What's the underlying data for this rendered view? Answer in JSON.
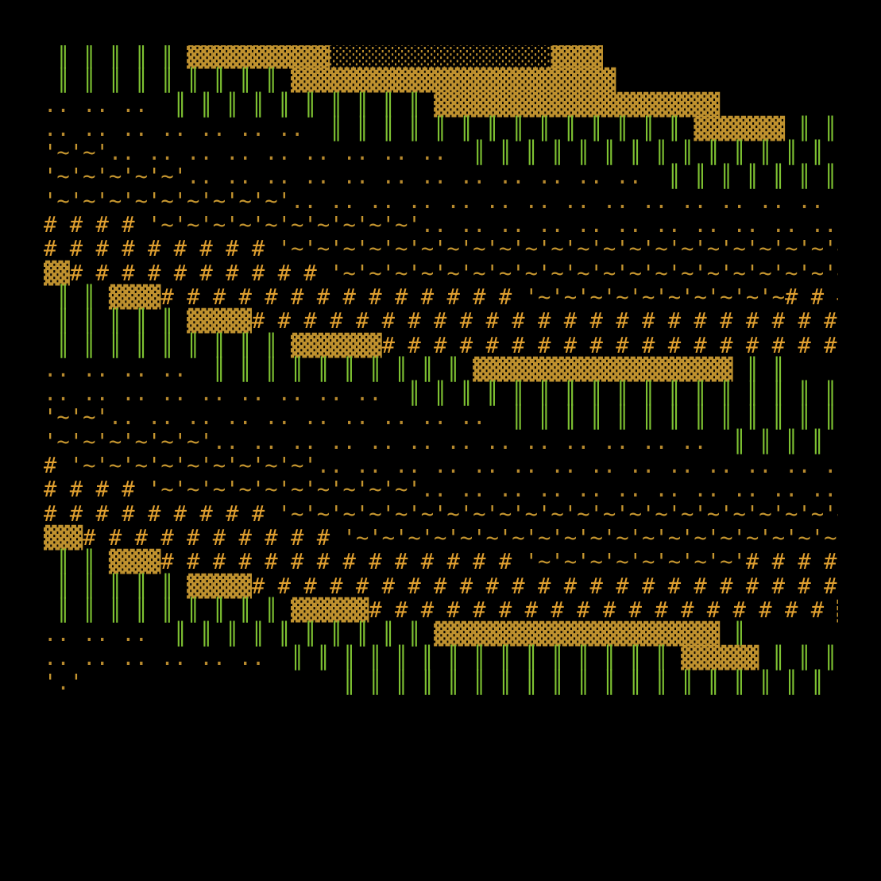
{
  "artwork": {
    "background_color": "#000000",
    "palette": {
      "bar": "#7ec232",
      "block": "#c0922f",
      "dot": "#b88a2e",
      "wave": "#c6962f",
      "hash": "#e0a030"
    },
    "rows": [
      " ║ ║ ║ ║ ║ ▓▓▓▓▓▓▓▓▓▓▓░░░░░░░░░░░░░░░░░▓▓▓▓",
      " ║ ║ ║ ║ ║ ║ ║ ║ ║ ▓▓▓▓▓▓▓▓▓▓▓▓▓▓▓▓▓▓▓▓▓▓▓▓▓",
      ".. .. ..  ║ ║ ║ ║ ║ ║ ║ ║ ║ ║ ▓▓▓▓▓▓▓▓▓▓▓▓▓▓▓▓▓▓▓▓▓▓",
      ".. .. .. .. .. .. ..  ║ ║ ║ ║ ║ ║ ║ ║ ║ ║ ║ ║ ║ ║ ▓▓▓▓▓▓▓ ║ ║ ║ ║ ║ ║ ║ ║",
      "'~'~'.. .. .. .. .. .. .. .. ..  ║ ║ ║ ║ ║ ║ ║ ║ ║ ║ ║ ║ ║ ║ ║ ║ ║ ║ ║ ║ ║ ║ ║ ║",
      "'~'~'~'~'~'.. .. .. .. .. .. .. .. .. .. .. ..  ║ ║ ║ ║ ║ ║ ║ ║ ║ ║ ║ ║ ║ ║ ║.. .. .. .",
      "'~'~'~'~'~'~'~'~'~'.. .. .. .. .. .. .. .. .. .. .. .. .. .. .. .. .. .. .. .. .. .",
      "# # # # '~'~'~'~'~'~'~'~'~'~'.. .. .. .. .. .. .. .. .. .. .. .. .. .. .. .. .. .. '~'.",
      "# # # # # # # # # '~'~'~'~'~'~'~'~'~'~'~'~'~'~'~'~'~'~'~'~'~'~'~'~'~'~'~'.",
      "▓▓# # # # # # # # # # '~'~'~'~'~'~'~'~'~'~'~'~'~'~'~'~'~'~'~'~'~'~'~'~'.",
      " ║ ║ ▓▓▓▓# # # # # # # # # # # # # # '~'~'~'~'~'~'~'~'~'~# # # # # # #",
      " ║ ║ ║ ║ ║ ▓▓▓▓▓# # # # # # # # # # # # # # # # # # # # # # # # # # #",
      " ║ ║ ║ ║ ║ ║ ║ ║ ║ ▓▓▓▓▓▓▓# # # # # # # # # # # # # # # # # # ▓▓▓▓",
      ".. .. .. ..  ║ ║ ║ ║ ║ ║ ║ ║ ║ ║ ▓▓▓▓▓▓▓▓▓▓▓▓▓▓▓▓▓▓▓▓ ║ ║",
      ".. .. .. .. .. .. .. .. ..  ║ ║ ║ ║ ║ ║ ║ ║ ║ ║ ║ ║ ║ ║ ║ ║ ║ ║ ║ ║ ║ ║ ║ ║ ║ ║ ║",
      "'~'~'.. .. .. .. .. .. .. .. .. ..  ║ ║ ║ ║ ║ ║ ║ ║ ║ ║ ║ ║ ║ ║ ║ ║ ║ ║ ║ ║ ║ ║ ║.",
      "'~'~'~'~'~'~'.. .. .. .. .. .. .. .. .. .. .. .. ..  ║ ║ ║ ║ ║ ║ ║ ║ ║ ║ ║.. .. .. .. .. .. .",
      "# '~'~'~'~'~'~'~'~'~'.. .. .. .. .. .. .. .. .. .. .. .. .. .. .. .. .. .. .. .. .. .. .",
      "# # # # '~'~'~'~'~'~'~'~'~'~'.. .. .. .. .. .. .. .. .. .. .. .. .. .. .. .. .. '~'~'~'.",
      "# # # # # # # # # '~'~'~'~'~'~'~'~'~'~'~'~'~'~'~'~'~'~'~'~'~'~'~'~'~'~'~'~'.",
      "▓▓▓# # # # # # # # # # '~'~'~'~'~'~'~'~'~'~'~'~'~'~'~'~'~'~'~'~'~'~'~'~'~#",
      " ║ ║ ▓▓▓▓# # # # # # # # # # # # # # '~'~'~'~'~'~'~'~'# # # # # # # # #",
      " ║ ║ ║ ║ ║ ▓▓▓▓▓# # # # # # # # # # # # # # # # # # # # # # # # # # #",
      " ║ ║ ║ ║ ║ ║ ║ ║ ║ ▓▓▓▓▓▓# # # # # # # # # # # # # # # # # # ▓▓▓▓",
      ".. .. ..  ║ ║ ║ ║ ║ ║ ║ ║ ║ ║ ▓▓▓▓▓▓▓▓▓▓▓▓▓▓▓▓▓▓▓▓▓▓ ║",
      ".. .. .. .. .. ..  ║ ║ ║ ║ ║ ║ ║ ║ ║ ║ ║ ║ ║ ║ ║ ▓▓▓▓▓▓ ║ ║ ║ ║ ║ ║ ║ ║ ║",
      "'.'                    ║ ║ ║ ║ ║ ║ ║ ║ ║ ║ ║ ║ ║ ║ ║ ║ ║ ║ ║ ║ ║ ║ ║ ║ ║ ║ ║"
    ]
  }
}
